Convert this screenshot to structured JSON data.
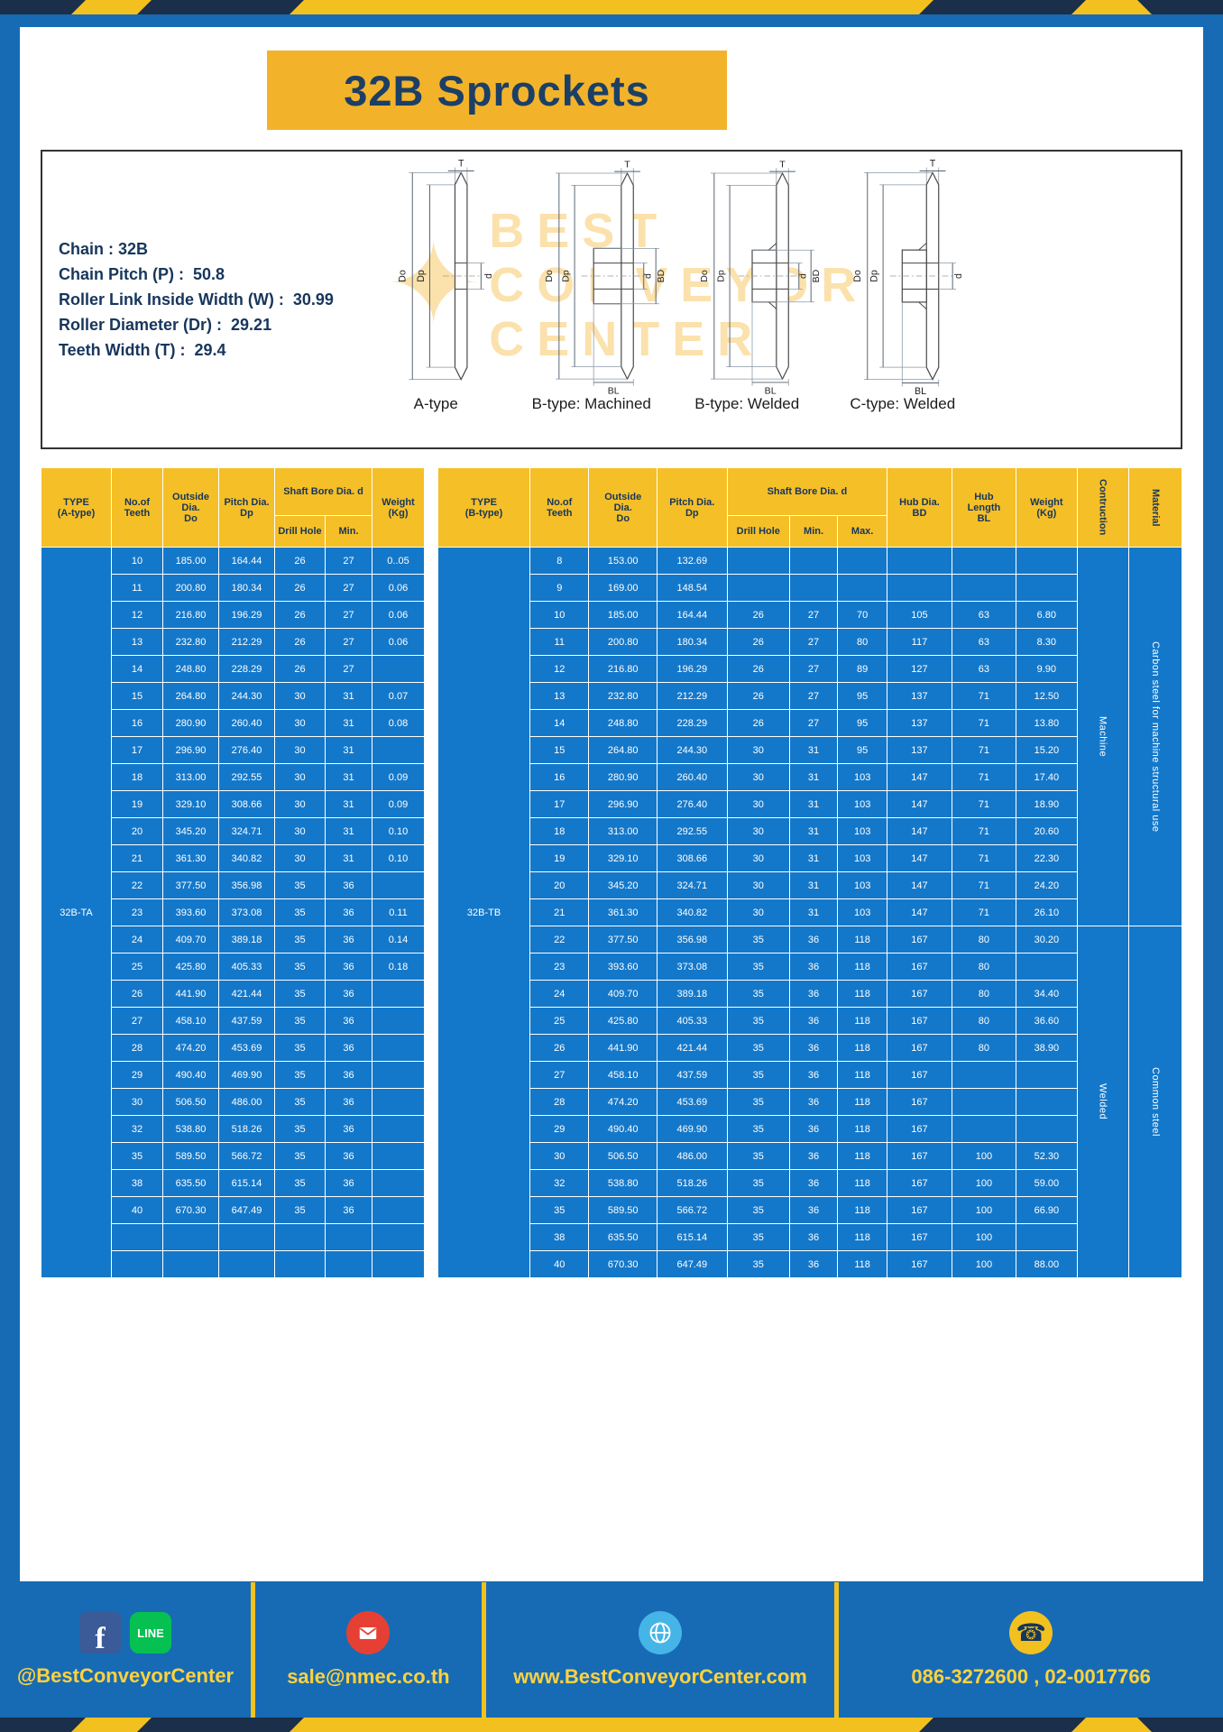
{
  "title": "32B Sprockets",
  "specs": {
    "lines": [
      "Chain : 32B",
      "Chain Pitch (P) :  50.8",
      "Roller Link Inside Width (W) :  30.99",
      "Roller Diameter (Dr) :  29.21",
      "Teeth Width (T) :  29.4"
    ]
  },
  "watermark": {
    "star": "✦",
    "lines": [
      "BEST",
      "CONVEYOR",
      "CENTER"
    ]
  },
  "diagrams": {
    "a": {
      "caption": "A-type",
      "dims": {
        "t": "T",
        "do": "Do",
        "dp": "Dp",
        "d": "d"
      }
    },
    "bm": {
      "caption": "B-type: Machined",
      "dims": {
        "t": "T",
        "do": "Do",
        "dp": "Dp",
        "d": "d",
        "bd": "BD",
        "bl": "BL"
      }
    },
    "bw": {
      "caption": "B-type: Welded",
      "dims": {
        "t": "T",
        "do": "Do",
        "dp": "Dp",
        "d": "d",
        "bd": "BD",
        "bl": "BL"
      }
    },
    "cw": {
      "caption": "C-type: Welded",
      "dims": {
        "t": "T",
        "do": "Do",
        "dp": "Dp",
        "d": "d",
        "bl": "BL"
      }
    }
  },
  "table_a": {
    "headers": {
      "type": "TYPE\n(A-type)",
      "teeth": "No.of\nTeeth",
      "outside": "Outside\nDia.\nDo",
      "pitch": "Pitch Dia.\nDp",
      "shaft": "Shaft Bore Dia. d",
      "drill": "Drill Hole",
      "min": "Min.",
      "weight": "Weight\n(Kg)"
    },
    "type_label": "32B-TA",
    "rows": [
      [
        "10",
        "185.00",
        "164.44",
        "26",
        "27",
        "0..05"
      ],
      [
        "11",
        "200.80",
        "180.34",
        "26",
        "27",
        "0.06"
      ],
      [
        "12",
        "216.80",
        "196.29",
        "26",
        "27",
        "0.06"
      ],
      [
        "13",
        "232.80",
        "212.29",
        "26",
        "27",
        "0.06"
      ],
      [
        "14",
        "248.80",
        "228.29",
        "26",
        "27",
        ""
      ],
      [
        "15",
        "264.80",
        "244.30",
        "30",
        "31",
        "0.07"
      ],
      [
        "16",
        "280.90",
        "260.40",
        "30",
        "31",
        "0.08"
      ],
      [
        "17",
        "296.90",
        "276.40",
        "30",
        "31",
        ""
      ],
      [
        "18",
        "313.00",
        "292.55",
        "30",
        "31",
        "0.09"
      ],
      [
        "19",
        "329.10",
        "308.66",
        "30",
        "31",
        "0.09"
      ],
      [
        "20",
        "345.20",
        "324.71",
        "30",
        "31",
        "0.10"
      ],
      [
        "21",
        "361.30",
        "340.82",
        "30",
        "31",
        "0.10"
      ],
      [
        "22",
        "377.50",
        "356.98",
        "35",
        "36",
        ""
      ],
      [
        "23",
        "393.60",
        "373.08",
        "35",
        "36",
        "0.11"
      ],
      [
        "24",
        "409.70",
        "389.18",
        "35",
        "36",
        "0.14"
      ],
      [
        "25",
        "425.80",
        "405.33",
        "35",
        "36",
        "0.18"
      ],
      [
        "26",
        "441.90",
        "421.44",
        "35",
        "36",
        ""
      ],
      [
        "27",
        "458.10",
        "437.59",
        "35",
        "36",
        ""
      ],
      [
        "28",
        "474.20",
        "453.69",
        "35",
        "36",
        ""
      ],
      [
        "29",
        "490.40",
        "469.90",
        "35",
        "36",
        ""
      ],
      [
        "30",
        "506.50",
        "486.00",
        "35",
        "36",
        ""
      ],
      [
        "32",
        "538.80",
        "518.26",
        "35",
        "36",
        ""
      ],
      [
        "35",
        "589.50",
        "566.72",
        "35",
        "36",
        ""
      ],
      [
        "38",
        "635.50",
        "615.14",
        "35",
        "36",
        ""
      ],
      [
        "40",
        "670.30",
        "647.49",
        "35",
        "36",
        ""
      ],
      [
        "",
        "",
        "",
        "",
        "",
        ""
      ],
      [
        "",
        "",
        "",
        "",
        "",
        ""
      ]
    ]
  },
  "table_b": {
    "headers": {
      "type": "TYPE\n(B-type)",
      "teeth": "No.of\nTeeth",
      "outside": "Outside\nDia.\nDo",
      "pitch": "Pitch Dia.\nDp",
      "shaft": "Shaft Bore Dia. d",
      "drill": "Drill Hole",
      "min": "Min.",
      "max": "Max.",
      "hub_dia": "Hub Dia.\nBD",
      "hub_len": "Hub\nLength\nBL",
      "weight": "Weight\n(Kg)",
      "construction": "Contruction",
      "material": "Material"
    },
    "type_label": "32B-TB",
    "rows": [
      [
        "8",
        "153.00",
        "132.69",
        "",
        "",
        "",
        "",
        "",
        ""
      ],
      [
        "9",
        "169.00",
        "148.54",
        "",
        "",
        "",
        "",
        "",
        ""
      ],
      [
        "10",
        "185.00",
        "164.44",
        "26",
        "27",
        "70",
        "105",
        "63",
        "6.80"
      ],
      [
        "11",
        "200.80",
        "180.34",
        "26",
        "27",
        "80",
        "117",
        "63",
        "8.30"
      ],
      [
        "12",
        "216.80",
        "196.29",
        "26",
        "27",
        "89",
        "127",
        "63",
        "9.90"
      ],
      [
        "13",
        "232.80",
        "212.29",
        "26",
        "27",
        "95",
        "137",
        "71",
        "12.50"
      ],
      [
        "14",
        "248.80",
        "228.29",
        "26",
        "27",
        "95",
        "137",
        "71",
        "13.80"
      ],
      [
        "15",
        "264.80",
        "244.30",
        "30",
        "31",
        "95",
        "137",
        "71",
        "15.20"
      ],
      [
        "16",
        "280.90",
        "260.40",
        "30",
        "31",
        "103",
        "147",
        "71",
        "17.40"
      ],
      [
        "17",
        "296.90",
        "276.40",
        "30",
        "31",
        "103",
        "147",
        "71",
        "18.90"
      ],
      [
        "18",
        "313.00",
        "292.55",
        "30",
        "31",
        "103",
        "147",
        "71",
        "20.60"
      ],
      [
        "19",
        "329.10",
        "308.66",
        "30",
        "31",
        "103",
        "147",
        "71",
        "22.30"
      ],
      [
        "20",
        "345.20",
        "324.71",
        "30",
        "31",
        "103",
        "147",
        "71",
        "24.20"
      ],
      [
        "21",
        "361.30",
        "340.82",
        "30",
        "31",
        "103",
        "147",
        "71",
        "26.10"
      ],
      [
        "22",
        "377.50",
        "356.98",
        "35",
        "36",
        "118",
        "167",
        "80",
        "30.20"
      ],
      [
        "23",
        "393.60",
        "373.08",
        "35",
        "36",
        "118",
        "167",
        "80",
        ""
      ],
      [
        "24",
        "409.70",
        "389.18",
        "35",
        "36",
        "118",
        "167",
        "80",
        "34.40"
      ],
      [
        "25",
        "425.80",
        "405.33",
        "35",
        "36",
        "118",
        "167",
        "80",
        "36.60"
      ],
      [
        "26",
        "441.90",
        "421.44",
        "35",
        "36",
        "118",
        "167",
        "80",
        "38.90"
      ],
      [
        "27",
        "458.10",
        "437.59",
        "35",
        "36",
        "118",
        "167",
        "",
        ""
      ],
      [
        "28",
        "474.20",
        "453.69",
        "35",
        "36",
        "118",
        "167",
        "",
        ""
      ],
      [
        "29",
        "490.40",
        "469.90",
        "35",
        "36",
        "118",
        "167",
        "",
        ""
      ],
      [
        "30",
        "506.50",
        "486.00",
        "35",
        "36",
        "118",
        "167",
        "100",
        "52.30"
      ],
      [
        "32",
        "538.80",
        "518.26",
        "35",
        "36",
        "118",
        "167",
        "100",
        "59.00"
      ],
      [
        "35",
        "589.50",
        "566.72",
        "35",
        "36",
        "118",
        "167",
        "100",
        "66.90"
      ],
      [
        "38",
        "635.50",
        "615.14",
        "35",
        "36",
        "118",
        "167",
        "100",
        ""
      ],
      [
        "40",
        "670.30",
        "647.49",
        "35",
        "36",
        "118",
        "167",
        "100",
        "88.00"
      ]
    ],
    "construction": [
      {
        "label": "Machine",
        "span": 14
      },
      {
        "label": "Welded",
        "span": 13
      }
    ],
    "material": [
      {
        "label": "Carbon steel for machine structural use",
        "span": 14
      },
      {
        "label": "Common steel",
        "span": 13
      }
    ]
  },
  "footer": {
    "facebook_glyph": "f",
    "line_glyph": "LINE",
    "social_handle": "@BestConveyorCenter",
    "email": "sale@nmec.co.th",
    "website": "www.BestConveyorCenter.com",
    "phones": "086-3272600 , 02-0017766"
  },
  "icons": {
    "phone": "☎"
  },
  "colors": {
    "frame_blue": "#176bb4",
    "table_blue": "#1478ca",
    "accent_yellow": "#f3c11f",
    "header_yellow": "#f5bf27",
    "navy": "#17365c"
  }
}
